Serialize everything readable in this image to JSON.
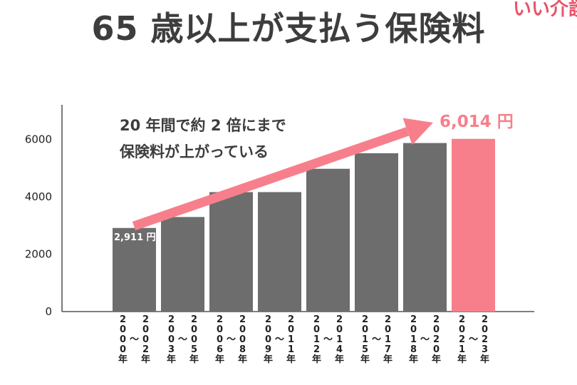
{
  "header": {
    "title": "65 歳以上が支払う保険料",
    "logo_text": "いい介護"
  },
  "colors": {
    "bar": "#6e6d6d",
    "highlight": "#f77f8c",
    "arrow": "#f77f8c",
    "text": "#3d3d3d"
  },
  "chart_data": {
    "type": "bar",
    "title": "65 歳以上が支払う保険料",
    "xlabel": "",
    "ylabel": "",
    "ylim": [
      0,
      7200
    ],
    "yticks": [
      "0",
      "2000",
      "4000",
      "6000"
    ],
    "categories": [
      [
        "2000年",
        "2002年"
      ],
      [
        "2003年",
        "2005年"
      ],
      [
        "2006年",
        "2008年"
      ],
      [
        "2009年",
        "2011年"
      ],
      [
        "2012年",
        "2014年"
      ],
      [
        "2015年",
        "2017年"
      ],
      [
        "2018年",
        "2020年"
      ],
      [
        "2021年",
        "2023年"
      ]
    ],
    "range_sep": "〜",
    "values": [
      2911,
      3293,
      4160,
      4160,
      4972,
      5514,
      5869,
      6014
    ],
    "highlight_index": 7,
    "data_labels": {
      "first": "2,911 円",
      "last": "6,014 円"
    },
    "annotation": {
      "line1": "20 年間で約 2 倍にまで",
      "line2": "保険料が上がっている"
    },
    "grid": false
  }
}
